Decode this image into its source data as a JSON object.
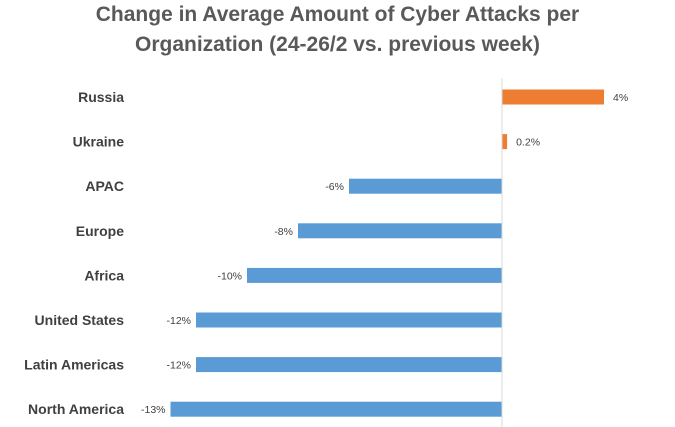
{
  "chart_data": {
    "type": "bar",
    "orientation": "horizontal",
    "title": "Change in Average Amount of Cyber Attacks per Organization (24-26/2 vs. previous week)",
    "title_lines": [
      "Change in Average Amount of Cyber Attacks per",
      "Organization (24-26/2 vs. previous week)"
    ],
    "categories": [
      "Russia",
      "Ukraine",
      "APAC",
      "Europe",
      "Africa",
      "United States",
      "Latin Americas",
      "North America"
    ],
    "values": [
      4,
      0.2,
      -6,
      -8,
      -10,
      -12,
      -12,
      -13
    ],
    "value_labels": [
      "4%",
      "0.2%",
      "-6%",
      "-8%",
      "-10%",
      "-12%",
      "-12%",
      "-13%"
    ],
    "unit": "%",
    "xlim": [
      -13,
      4
    ],
    "grid": false,
    "legend": "none",
    "colors": {
      "positive": "#ED7D31",
      "negative": "#5B9BD5",
      "axis": "#D9D9D9",
      "title": "#595959",
      "label": "#404040"
    }
  }
}
